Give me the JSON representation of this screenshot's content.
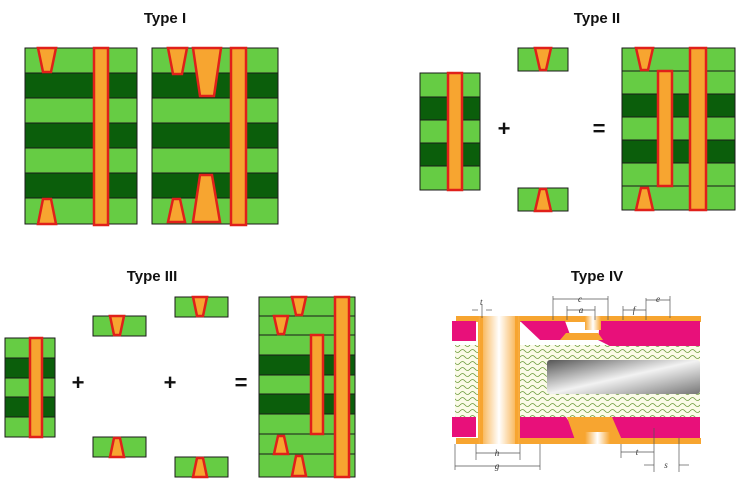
{
  "panels": {
    "type1": {
      "title": "Type I"
    },
    "type2": {
      "title": "Type II",
      "plus": "+",
      "equals": "="
    },
    "type3": {
      "title": "Type III",
      "plus1": "+",
      "plus2": "+",
      "equals": "="
    },
    "type4": {
      "title": "Type IV",
      "labels": {
        "t_top": "t",
        "c": "c",
        "a": "a",
        "f": "f",
        "e": "e",
        "h": "h",
        "g": "g",
        "t_bottom": "t",
        "s": "s"
      }
    }
  },
  "colors": {
    "light_layer": "#66cc44",
    "dark_layer": "#0b5e0b",
    "via_fill": "#f7a530",
    "via_outline": "#e0201a",
    "pad": "#e8107a"
  }
}
